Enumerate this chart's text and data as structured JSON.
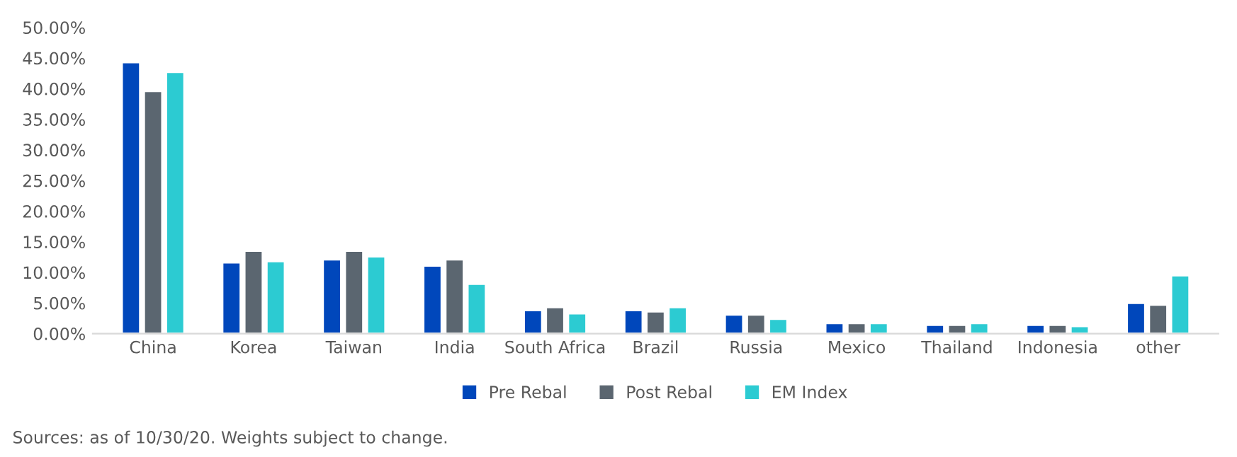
{
  "chart_data": {
    "type": "bar",
    "categories": [
      "China",
      "Korea",
      "Taiwan",
      "India",
      "South Africa",
      "Brazil",
      "Russia",
      "Mexico",
      "Thailand",
      "Indonesia",
      "other"
    ],
    "series": [
      {
        "name": "Pre Rebal",
        "color": "#0047bb",
        "values": [
          44.3,
          11.6,
          12.1,
          11.1,
          3.8,
          3.8,
          3.1,
          1.7,
          1.4,
          1.4,
          5.0
        ]
      },
      {
        "name": "Post Rebal",
        "color": "#5b6670",
        "values": [
          39.6,
          13.5,
          13.5,
          12.1,
          4.3,
          3.6,
          3.1,
          1.7,
          1.4,
          1.4,
          4.7
        ]
      },
      {
        "name": "EM Index",
        "color": "#2ccbd2",
        "values": [
          42.7,
          11.8,
          12.6,
          8.1,
          3.3,
          4.3,
          2.4,
          1.7,
          1.7,
          1.2,
          9.5
        ]
      }
    ],
    "ylim": [
      0,
      50
    ],
    "yticks": [
      {
        "value": 0,
        "label": "0.00%"
      },
      {
        "value": 5,
        "label": "5.00%"
      },
      {
        "value": 10,
        "label": "10.00%"
      },
      {
        "value": 15,
        "label": "15.00%"
      },
      {
        "value": 20,
        "label": "20.00%"
      },
      {
        "value": 25,
        "label": "25.00%"
      },
      {
        "value": 30,
        "label": "30.00%"
      },
      {
        "value": 35,
        "label": "35.00%"
      },
      {
        "value": 40,
        "label": "40.00%"
      },
      {
        "value": 45,
        "label": "45.00%"
      },
      {
        "value": 50,
        "label": "50.00%"
      }
    ],
    "grid": false,
    "legend": "bottom",
    "annotations": [
      "Sources: as of 10/30/20. Weights subject to change."
    ]
  }
}
